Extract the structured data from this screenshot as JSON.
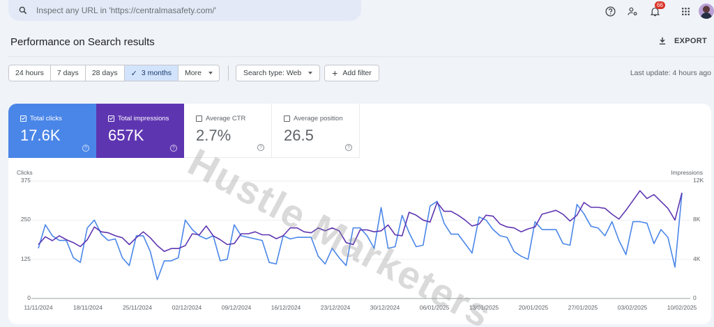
{
  "search": {
    "placeholder": "Inspect any URL in 'https://centralmasafety.com/'"
  },
  "topbar": {
    "icons": [
      "help-icon",
      "manage-users-icon",
      "notifications-icon",
      "apps-grid-icon",
      "avatar"
    ],
    "notification_count": "66"
  },
  "header": {
    "title": "Performance on Search results",
    "export_label": "EXPORT"
  },
  "filters": {
    "date_ranges": [
      {
        "label": "24 hours",
        "active": false
      },
      {
        "label": "7 days",
        "active": false
      },
      {
        "label": "28 days",
        "active": false
      },
      {
        "label": "3 months",
        "active": true
      },
      {
        "label": "More",
        "active": false
      }
    ],
    "search_type": "Search type: Web",
    "add_filter": "Add filter",
    "last_update": "Last update: 4 hours ago"
  },
  "metrics": [
    {
      "label": "Total clicks",
      "value": "17.6K",
      "checked": true,
      "color": "#4a86e8"
    },
    {
      "label": "Total impressions",
      "value": "657K",
      "checked": true,
      "color": "#5e35b1"
    },
    {
      "label": "Average CTR",
      "value": "2.7%",
      "checked": false
    },
    {
      "label": "Average position",
      "value": "26.5",
      "checked": false
    }
  ],
  "watermark": "Hustle Marketers",
  "chart_data": {
    "type": "line",
    "title": "Performance on Search results",
    "xlabel": "",
    "ylabel": "Clicks",
    "ylabel_right": "Impressions",
    "ylim": [
      0,
      375
    ],
    "ylim_right": [
      0,
      12000
    ],
    "yticks": [
      "0",
      "125",
      "250",
      "375"
    ],
    "yticks_right": [
      "0",
      "4K",
      "8K",
      "12K"
    ],
    "x_tick_labels": [
      "11/11/2024",
      "18/11/2024",
      "25/11/2024",
      "02/12/2024",
      "09/12/2024",
      "16/12/2024",
      "23/12/2024",
      "30/12/2024",
      "06/01/2025",
      "13/01/2025",
      "20/01/2025",
      "27/01/2025",
      "03/02/2025",
      "10/02/2025"
    ],
    "grid": true,
    "legend": "none",
    "series": [
      {
        "name": "Clicks",
        "axis": "left",
        "color": "#4a86e8",
        "values": [
          160,
          235,
          200,
          185,
          185,
          130,
          115,
          225,
          250,
          205,
          185,
          190,
          130,
          105,
          200,
          200,
          150,
          60,
          120,
          120,
          130,
          250,
          220,
          200,
          190,
          200,
          120,
          125,
          235,
          200,
          195,
          190,
          185,
          115,
          110,
          200,
          190,
          195,
          195,
          195,
          135,
          110,
          160,
          130,
          105,
          225,
          225,
          200,
          160,
          290,
          160,
          165,
          265,
          210,
          165,
          170,
          295,
          310,
          240,
          205,
          205,
          175,
          145,
          260,
          250,
          220,
          200,
          195,
          150,
          135,
          125,
          245,
          220,
          220,
          220,
          175,
          170,
          300,
          270,
          230,
          225,
          200,
          245,
          185,
          140,
          245,
          245,
          240,
          175,
          220,
          195,
          100,
          335
        ]
      },
      {
        "name": "Impressions",
        "axis": "right",
        "color": "#5e35b1",
        "values": [
          5500,
          6300,
          5900,
          6400,
          6000,
          5700,
          5300,
          6000,
          7300,
          6800,
          6700,
          6400,
          6200,
          5500,
          6200,
          6800,
          6200,
          5400,
          4800,
          5100,
          5100,
          5400,
          6600,
          6500,
          7400,
          6400,
          6000,
          5500,
          5600,
          6600,
          6600,
          6800,
          6500,
          6500,
          6100,
          6400,
          7200,
          7200,
          6800,
          6700,
          7200,
          6900,
          7200,
          6900,
          5700,
          5500,
          7000,
          7000,
          6800,
          6900,
          7500,
          6500,
          6400,
          8800,
          8500,
          8000,
          7800,
          9800,
          8900,
          8900,
          8500,
          8000,
          7400,
          7600,
          8500,
          8400,
          7600,
          7300,
          7200,
          6800,
          7100,
          7300,
          8600,
          8800,
          9000,
          8600,
          7900,
          8500,
          9800,
          9300,
          9300,
          9200,
          8600,
          8100,
          9000,
          10000,
          11000,
          10200,
          10600,
          9900,
          9200,
          8000,
          10800
        ]
      }
    ]
  }
}
